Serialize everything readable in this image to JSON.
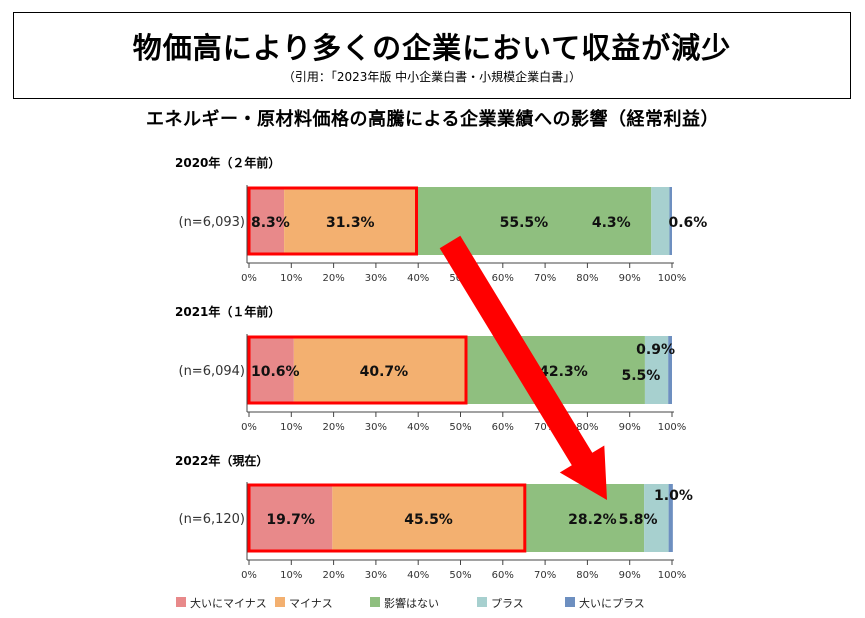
{
  "header": {
    "title": "物価高により多くの企業において収益が減少",
    "citation": "（引用：「2023年版 中小企業白書・小規模企業白書」）"
  },
  "chart_data": {
    "type": "bar",
    "orientation": "horizontal",
    "stacked": true,
    "title": "エネルギー・原材料価格の高騰による企業業績への影響（経常利益）",
    "ticks": [
      "0%",
      "10%",
      "20%",
      "30%",
      "40%",
      "50%",
      "60%",
      "70%",
      "80%",
      "90%",
      "100%"
    ],
    "xlim": [
      0,
      100
    ],
    "legend_position": "bottom",
    "series": [
      {
        "name": "大いにマイナス",
        "color": "#e8898a"
      },
      {
        "name": "マイナス",
        "color": "#f3b070"
      },
      {
        "name": "影響はない",
        "color": "#8fbf7f"
      },
      {
        "name": "プラス",
        "color": "#a7d0cf"
      },
      {
        "name": "大いにプラス",
        "color": "#6d8fc0"
      }
    ],
    "panels": [
      {
        "year_label": "2020年（２年前）",
        "n_label": "(n=6,093)",
        "values": [
          8.3,
          31.3,
          55.5,
          4.3,
          0.6
        ],
        "value_labels": [
          "8.3%",
          "31.3%",
          "55.5%",
          "4.3%",
          "0.6%"
        ]
      },
      {
        "year_label": "2021年（１年前）",
        "n_label": "(n=6,094)",
        "values": [
          10.6,
          40.7,
          42.3,
          5.5,
          0.9
        ],
        "value_labels": [
          "10.6%",
          "40.7%",
          "42.3%",
          "5.5%",
          "0.9%"
        ]
      },
      {
        "year_label": "2022年（現在）",
        "n_label": "(n=6,120)",
        "values": [
          19.7,
          45.5,
          28.2,
          5.8,
          1.0
        ],
        "value_labels": [
          "19.7%",
          "45.5%",
          "28.2%",
          "5.8%",
          "1.0%"
        ]
      }
    ],
    "highlight": {
      "type": "box",
      "covers_series": [
        0,
        1
      ],
      "color": "#ff0000"
    },
    "trend_arrow": {
      "from_panel": 0,
      "to_panel": 2,
      "color": "#ff0000"
    }
  }
}
